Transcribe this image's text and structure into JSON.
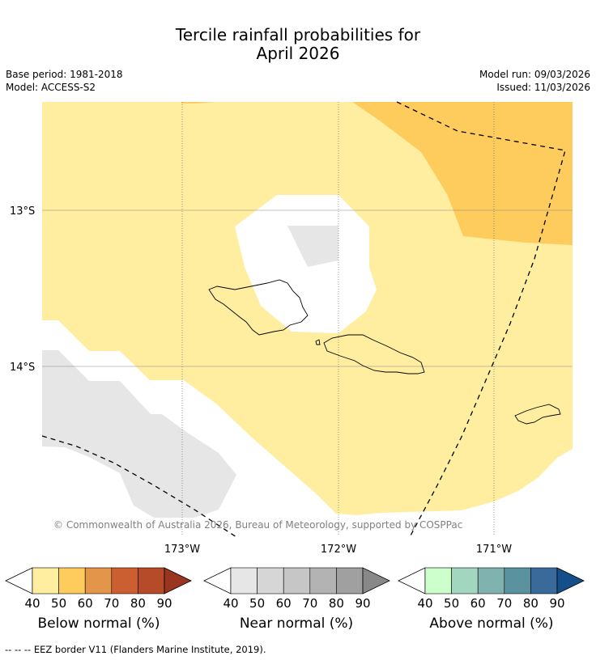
{
  "header": {
    "title_line1": "Tercile rainfall probabilities for",
    "title_line2": "April 2026",
    "base_period": "Base period: 1981-2018",
    "model": "Model: ACCESS-S2",
    "model_run": "Model run: 09/03/2026",
    "issued": "Issued: 11/03/2026"
  },
  "map": {
    "lat_labels": [
      "13°S",
      "14°S"
    ],
    "lon_labels": [
      "173°W",
      "172°W",
      "171°W"
    ],
    "copyright": "© Commonwealth of Australia 2026, Bureau of Meteorology, supported by COSPPac"
  },
  "legend": {
    "below": {
      "label": "Below normal (%)",
      "ticks": [
        "40",
        "50",
        "60",
        "70",
        "80",
        "90"
      ],
      "colors": [
        "#ffeda0",
        "#fecc5c",
        "#e3954a",
        "#cc5f31",
        "#b54b29",
        "#9a3520"
      ]
    },
    "near": {
      "label": "Near normal (%)",
      "ticks": [
        "40",
        "50",
        "60",
        "70",
        "80",
        "90"
      ],
      "colors": [
        "#e6e6e6",
        "#d6d6d6",
        "#c6c6c6",
        "#b3b3b3",
        "#a0a0a0",
        "#888888"
      ]
    },
    "above": {
      "label": "Above normal (%)",
      "ticks": [
        "40",
        "50",
        "60",
        "70",
        "80",
        "90"
      ],
      "colors": [
        "#ccffcc",
        "#a3d6bf",
        "#80b3b0",
        "#5b929f",
        "#3a6a99",
        "#154f8a"
      ]
    }
  },
  "footnote": "--  --  -- EEZ border V11 (Flanders Marine Institute, 2019)."
}
